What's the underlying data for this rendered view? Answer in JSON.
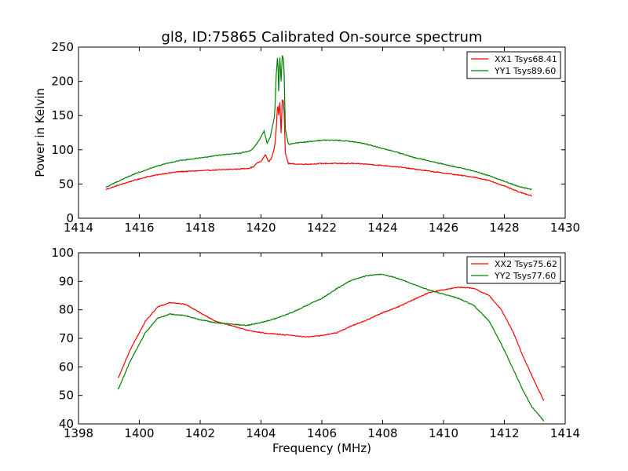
{
  "figure": {
    "title": "gl8, ID:75865 Calibrated On-source spectrum"
  },
  "chart_data": [
    {
      "type": "line",
      "title": "gl8, ID:75865 Calibrated On-source spectrum",
      "xlabel": "",
      "ylabel": "Power in Kelvin",
      "xlim": [
        1414,
        1430
      ],
      "ylim": [
        0,
        250
      ],
      "xticks": [
        1414,
        1416,
        1418,
        1420,
        1422,
        1424,
        1426,
        1428,
        1430
      ],
      "yticks": [
        0,
        50,
        100,
        150,
        200,
        250
      ],
      "grid": false,
      "legend_position": "top-right",
      "series": [
        {
          "name": "XX1 Tsys68.41",
          "color": "#ff0000",
          "x": [
            1414.9,
            1415.3,
            1415.8,
            1416.3,
            1416.8,
            1417.3,
            1417.8,
            1418.3,
            1418.8,
            1419.3,
            1419.6,
            1419.75,
            1419.85,
            1420.0,
            1420.15,
            1420.25,
            1420.35,
            1420.45,
            1420.5,
            1420.55,
            1420.58,
            1420.62,
            1420.66,
            1420.7,
            1420.75,
            1420.8,
            1420.9,
            1421.2,
            1421.6,
            1422.0,
            1422.5,
            1423.0,
            1423.5,
            1424.0,
            1424.5,
            1425.0,
            1425.5,
            1426.0,
            1426.5,
            1427.0,
            1427.5,
            1428.0,
            1428.5,
            1428.9
          ],
          "values": [
            42,
            48,
            55,
            61,
            65,
            68,
            69,
            70,
            71,
            72,
            73,
            75,
            80,
            83,
            93,
            82,
            88,
            105,
            130,
            170,
            150,
            170,
            125,
            173,
            170,
            95,
            80,
            79,
            79,
            80,
            80,
            80,
            79,
            77,
            75,
            72,
            69,
            66,
            63,
            60,
            55,
            47,
            38,
            33
          ]
        },
        {
          "name": "YY1 Tsys89.60",
          "color": "#008000",
          "x": [
            1414.9,
            1415.3,
            1415.8,
            1416.3,
            1416.8,
            1417.3,
            1417.8,
            1418.3,
            1418.8,
            1419.3,
            1419.6,
            1419.7,
            1419.8,
            1419.95,
            1420.1,
            1420.2,
            1420.3,
            1420.45,
            1420.5,
            1420.55,
            1420.58,
            1420.62,
            1420.66,
            1420.7,
            1420.75,
            1420.8,
            1420.9,
            1421.2,
            1421.6,
            1422.0,
            1422.5,
            1423.0,
            1423.5,
            1424.0,
            1424.5,
            1425.0,
            1425.5,
            1426.0,
            1426.5,
            1427.0,
            1427.5,
            1428.0,
            1428.5,
            1428.9
          ],
          "values": [
            45,
            54,
            64,
            72,
            79,
            84,
            87,
            90,
            93,
            95,
            98,
            100,
            105,
            115,
            127,
            110,
            118,
            150,
            210,
            240,
            185,
            235,
            200,
            238,
            230,
            130,
            108,
            110,
            112,
            114,
            114,
            112,
            108,
            102,
            96,
            89,
            84,
            79,
            74,
            69,
            62,
            54,
            46,
            42
          ]
        }
      ]
    },
    {
      "type": "line",
      "title": "",
      "xlabel": "Frequency (MHz)",
      "ylabel": "",
      "xlim": [
        1398,
        1414
      ],
      "ylim": [
        40,
        100
      ],
      "xticks": [
        1398,
        1400,
        1402,
        1404,
        1406,
        1408,
        1410,
        1412,
        1414
      ],
      "yticks": [
        40,
        50,
        60,
        70,
        80,
        90,
        100
      ],
      "grid": false,
      "legend_position": "top-right",
      "series": [
        {
          "name": "XX2 Tsys75.62",
          "color": "#ff0000",
          "x": [
            1399.3,
            1399.7,
            1400.2,
            1400.6,
            1401.0,
            1401.5,
            1402.0,
            1402.5,
            1403.0,
            1403.5,
            1404.0,
            1404.5,
            1405.0,
            1405.5,
            1406.0,
            1406.5,
            1407.0,
            1407.5,
            1408.0,
            1408.5,
            1409.0,
            1409.5,
            1410.0,
            1410.5,
            1411.0,
            1411.5,
            1411.9,
            1412.3,
            1412.6,
            1412.9,
            1413.3
          ],
          "values": [
            56,
            66,
            76,
            81,
            82.5,
            82,
            79,
            76,
            74.5,
            73,
            72,
            71.5,
            71,
            70.5,
            71,
            72,
            74.5,
            76.5,
            79,
            81,
            83.5,
            86,
            87,
            88,
            87.5,
            85,
            80,
            72,
            64,
            57,
            48
          ]
        },
        {
          "name": "YY2 Tsys77.60",
          "color": "#008000",
          "x": [
            1399.3,
            1399.7,
            1400.2,
            1400.6,
            1401.0,
            1401.5,
            1402.0,
            1402.5,
            1403.0,
            1403.5,
            1404.0,
            1404.5,
            1405.0,
            1405.5,
            1406.0,
            1406.5,
            1407.0,
            1407.5,
            1408.0,
            1408.5,
            1409.0,
            1409.5,
            1410.0,
            1410.5,
            1411.0,
            1411.5,
            1411.9,
            1412.3,
            1412.6,
            1412.9,
            1413.3
          ],
          "values": [
            52,
            62,
            72,
            77,
            78.5,
            78,
            76.5,
            75.5,
            75,
            74.5,
            75.5,
            77,
            79,
            81.5,
            84,
            87.5,
            90.5,
            92,
            92.5,
            91,
            89,
            87,
            85.5,
            84,
            81.5,
            76,
            68,
            59,
            52,
            46,
            41
          ]
        }
      ]
    }
  ]
}
